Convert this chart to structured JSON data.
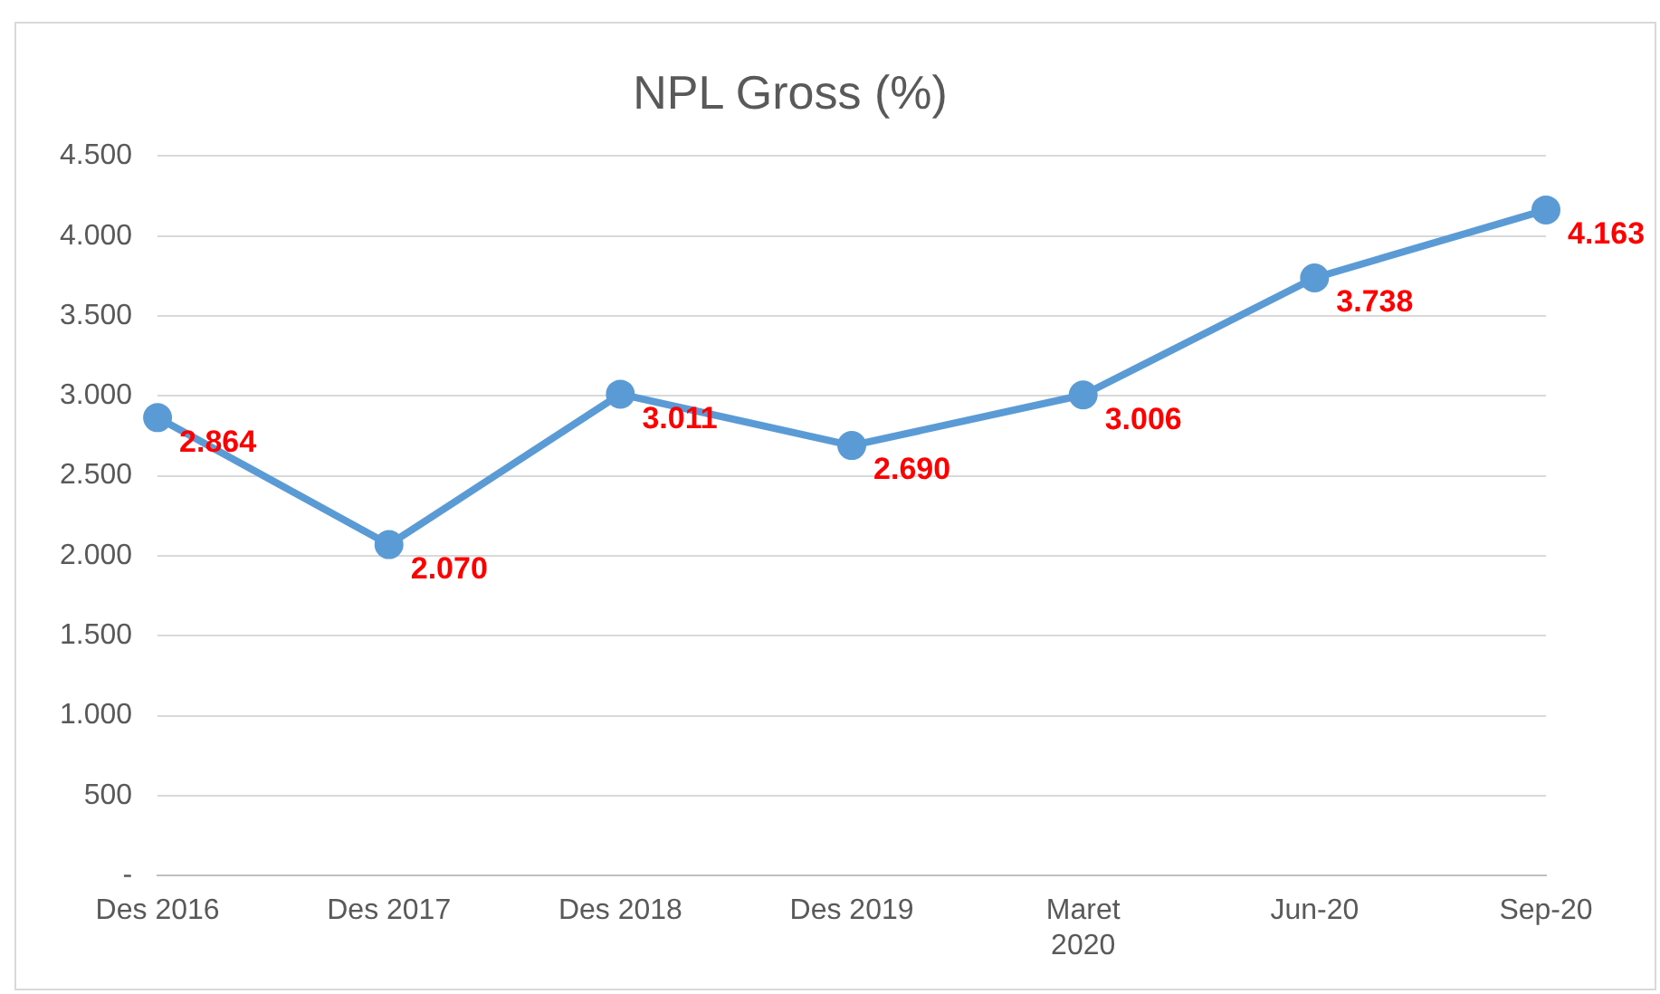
{
  "chart_data": {
    "type": "line",
    "title": "NPL Gross (%)",
    "categories": [
      "Des 2016",
      "Des 2017",
      "Des 2018",
      "Des 2019",
      "Maret 2020",
      "Jun-20",
      "Sep-20"
    ],
    "series": [
      {
        "color": "#5b9bd5",
        "values": [
          2864,
          2070,
          3011,
          2690,
          3006,
          3738,
          4163
        ],
        "value_labels": [
          "2.864",
          "2.070",
          "3.011",
          "2.690",
          "3.006",
          "3.738",
          "4.163"
        ]
      }
    ],
    "ylim": [
      0,
      4500
    ],
    "yticks": [
      {
        "value": 0,
        "label": "-"
      },
      500,
      {
        "value": 1000,
        "label": "1.000"
      },
      {
        "value": 1500,
        "label": "1.500"
      },
      {
        "value": 2000,
        "label": "2.000"
      },
      {
        "value": 2500,
        "label": "2.500"
      },
      {
        "value": 3000,
        "label": "3.000"
      },
      {
        "value": 3500,
        "label": "3.500"
      },
      {
        "value": 4000,
        "label": "4.000"
      },
      {
        "value": 4500,
        "label": "4.500"
      }
    ],
    "grid": "y",
    "legend": false,
    "marker": "circle",
    "line_style": "solid"
  }
}
